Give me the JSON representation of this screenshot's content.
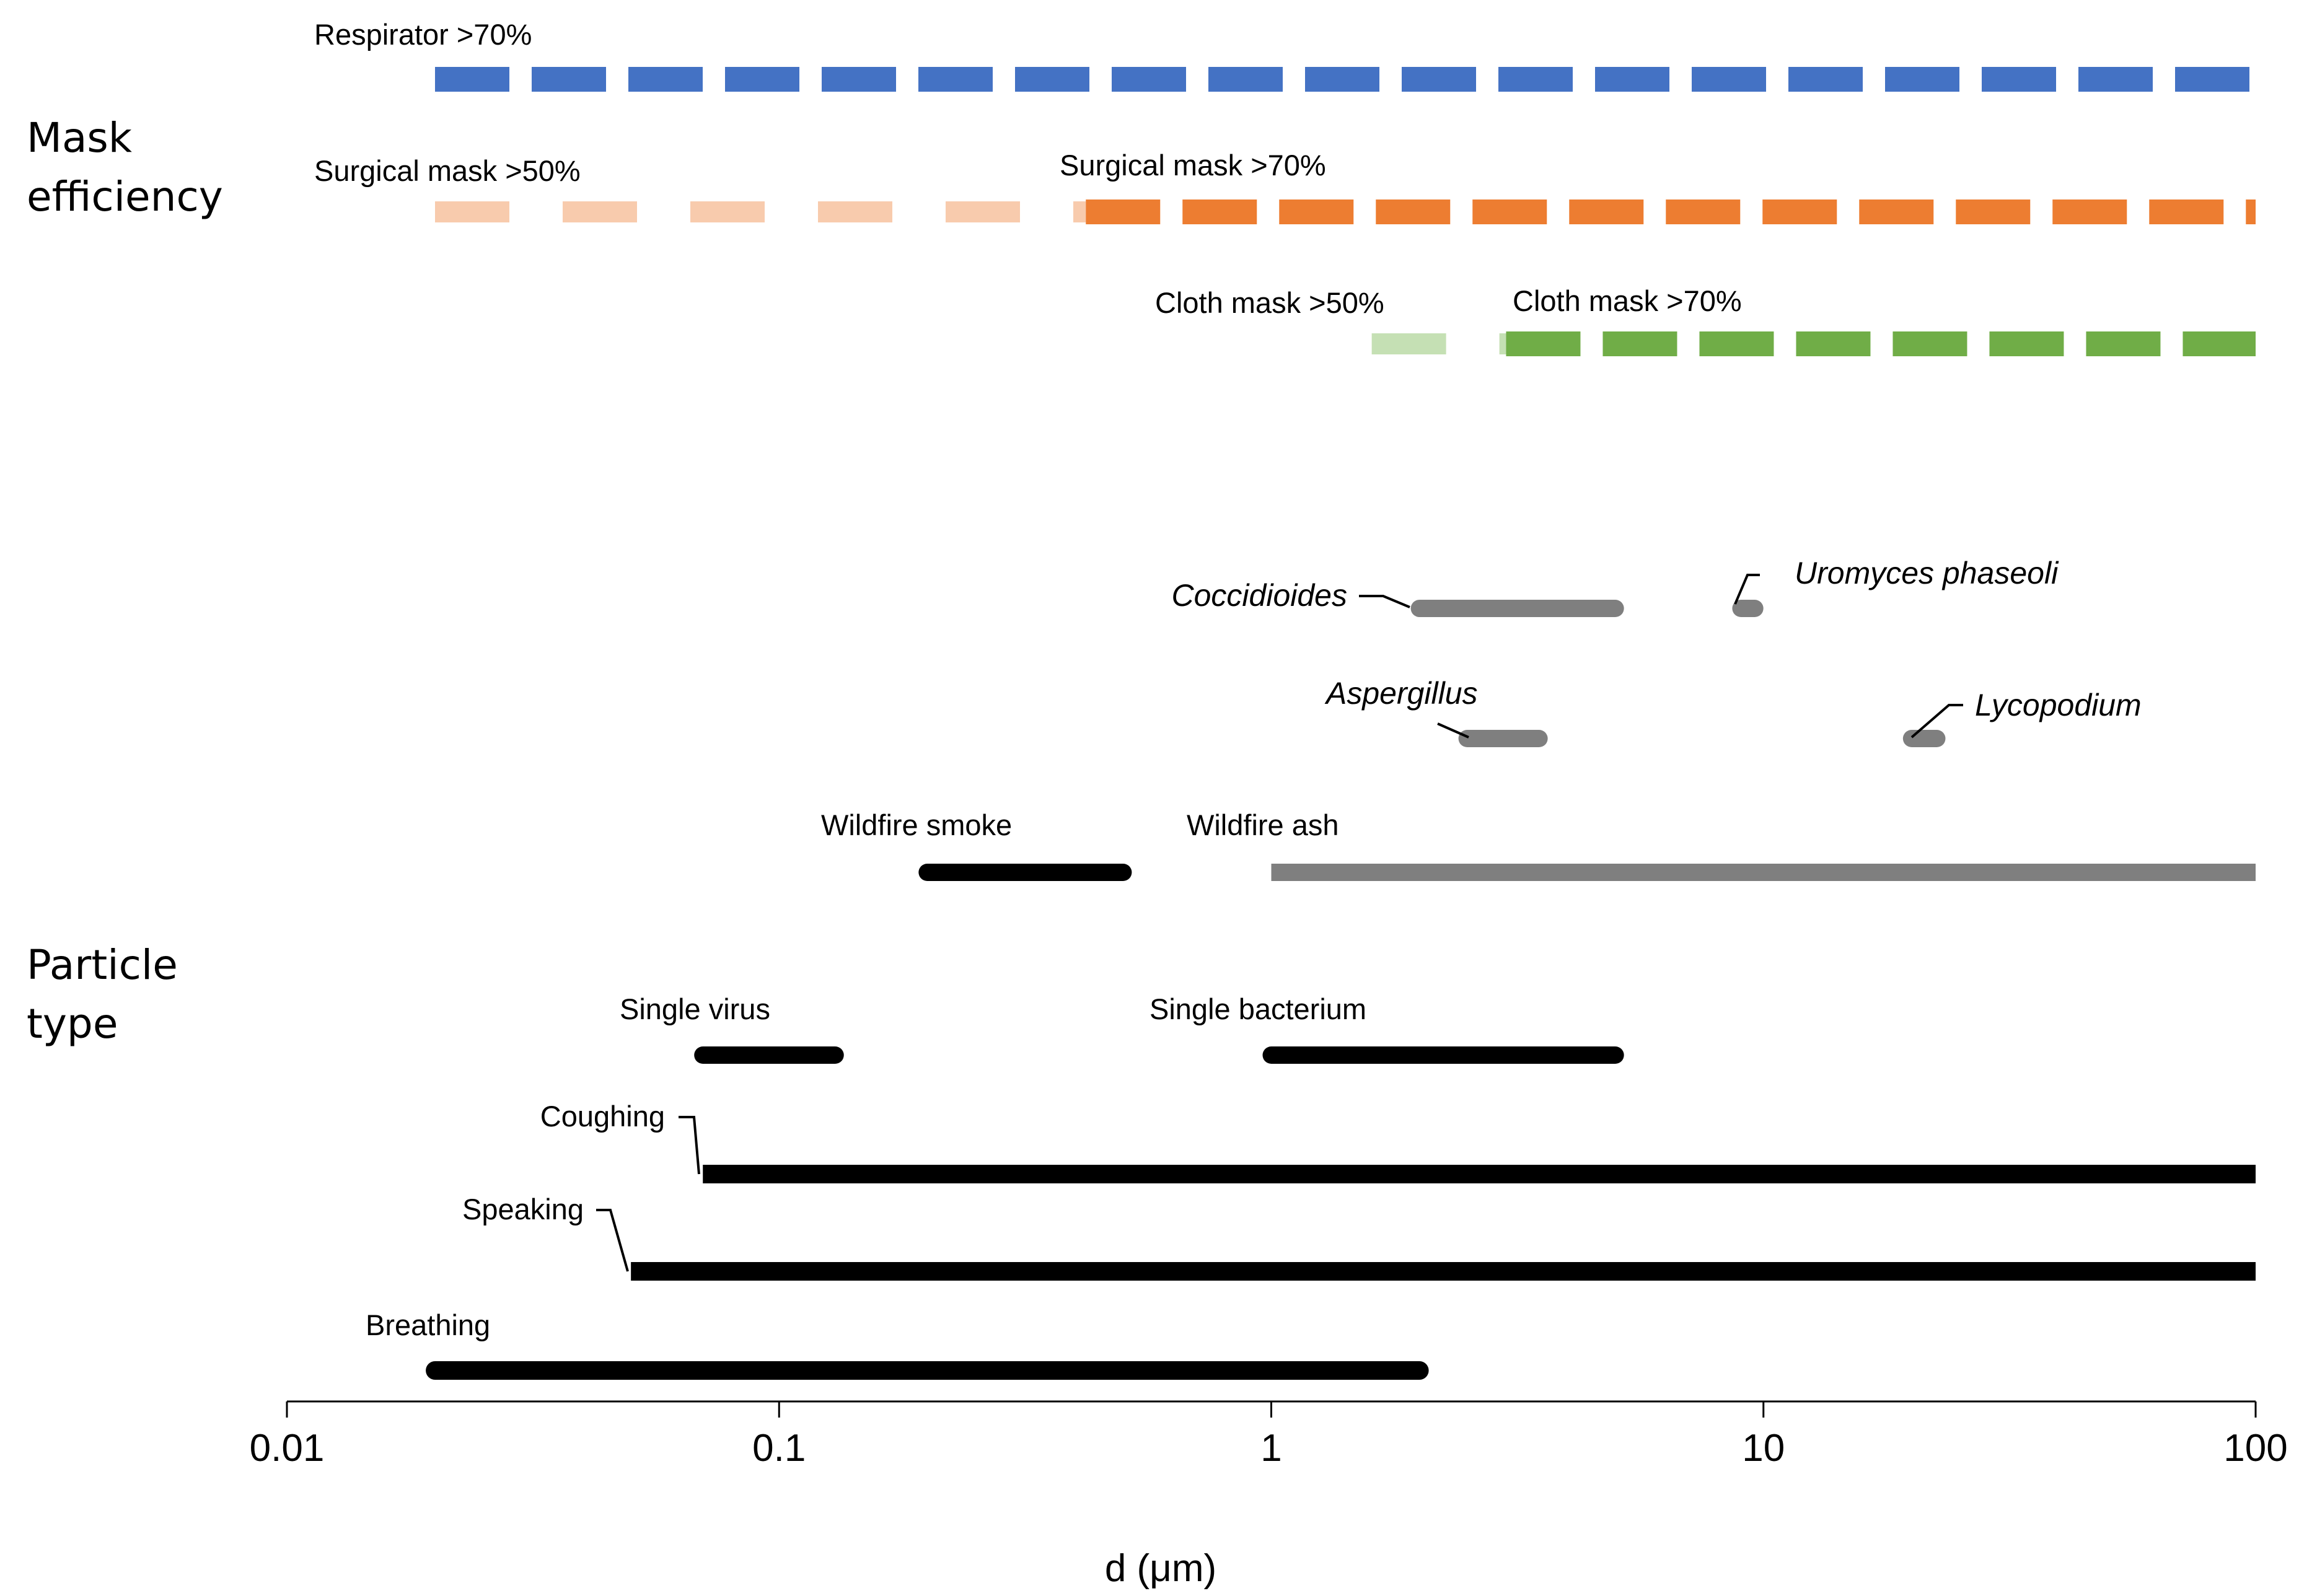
{
  "chart_data": {
    "type": "range",
    "title": "",
    "xlabel": "d (μm)",
    "xscale": "log",
    "xlim": [
      0.01,
      100
    ],
    "xticks": [
      0.01,
      0.1,
      1,
      10,
      100
    ],
    "xtick_labels": [
      "0.01",
      "0.1",
      "1",
      "10",
      "100"
    ],
    "group_titles": {
      "mask": [
        "Mask",
        "efficiency"
      ],
      "particle": [
        "Particle",
        "type"
      ]
    },
    "mask_efficiency": [
      {
        "id": "respirator-70",
        "label": "Respirator >70%",
        "min": 0.03,
        "max": 100,
        "style": "dashed",
        "color": "#4472C4"
      },
      {
        "id": "surgical-50",
        "label": "Surgical mask >50%",
        "min": 0.03,
        "max": 0.42,
        "style": "dashed",
        "color": "#F8CBAD"
      },
      {
        "id": "surgical-70",
        "label": "Surgical mask >70%",
        "min": 0.42,
        "max": 100,
        "style": "dashed",
        "color": "#ED7D31"
      },
      {
        "id": "cloth-50",
        "label": "Cloth mask >50%",
        "min": 1.6,
        "max": 3.0,
        "style": "dashed",
        "color": "#C5E0B4"
      },
      {
        "id": "cloth-70",
        "label": "Cloth mask >70%",
        "min": 3.0,
        "max": 100,
        "style": "dashed",
        "color": "#70AD47"
      }
    ],
    "particle_types": [
      {
        "id": "coccidioides",
        "label": "Coccidioides",
        "italic": true,
        "min": 2.0,
        "max": 5.0,
        "color": "#7F7F7F"
      },
      {
        "id": "uromyces",
        "label": "Uromyces phaseoli",
        "italic": true,
        "min": 9.0,
        "max": 9.6,
        "color": "#7F7F7F"
      },
      {
        "id": "aspergillus",
        "label": "Aspergillus",
        "italic": true,
        "min": 2.5,
        "max": 3.5,
        "color": "#7F7F7F"
      },
      {
        "id": "lycopodium",
        "label": "Lycopodium",
        "italic": true,
        "min": 20,
        "max": 22.5,
        "color": "#7F7F7F"
      },
      {
        "id": "wildfire-smoke",
        "label": "Wildfire smoke",
        "italic": false,
        "min": 0.2,
        "max": 0.5,
        "color": "#000000"
      },
      {
        "id": "wildfire-ash",
        "label": "Wildfire ash",
        "italic": false,
        "min": 1.0,
        "max": 100,
        "color": "#7F7F7F"
      },
      {
        "id": "single-virus",
        "label": "Single virus",
        "italic": false,
        "min": 0.07,
        "max": 0.13,
        "color": "#000000"
      },
      {
        "id": "single-bacterium",
        "label": "Single bacterium",
        "italic": false,
        "min": 1.0,
        "max": 5.0,
        "color": "#000000"
      },
      {
        "id": "coughing",
        "label": "Coughing",
        "italic": false,
        "min": 0.07,
        "max": 100,
        "color": "#000000"
      },
      {
        "id": "speaking",
        "label": "Speaking",
        "italic": false,
        "min": 0.05,
        "max": 100,
        "color": "#000000"
      },
      {
        "id": "breathing",
        "label": "Breathing",
        "italic": false,
        "min": 0.02,
        "max": 2.0,
        "color": "#000000"
      }
    ]
  }
}
